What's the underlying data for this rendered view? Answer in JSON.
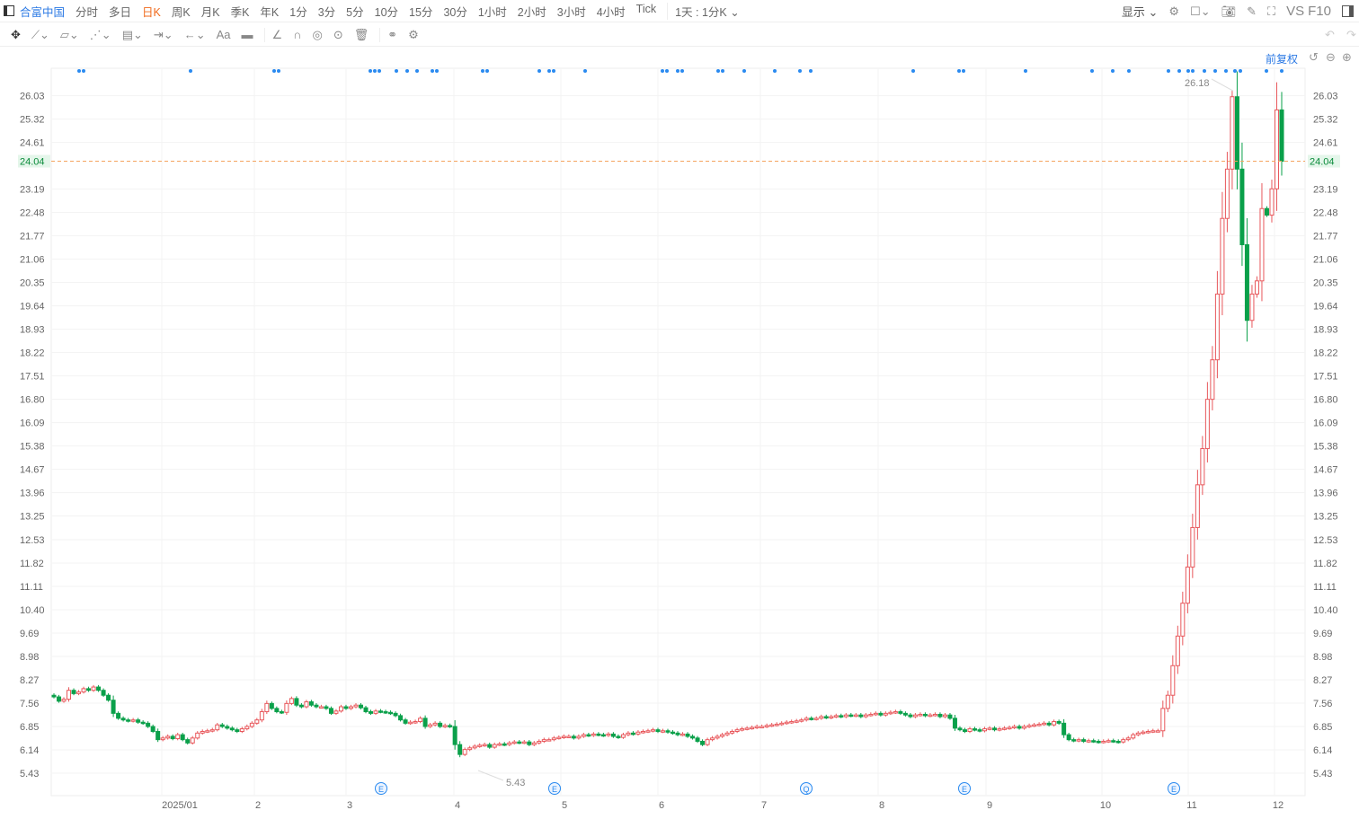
{
  "header": {
    "brand": "合富中国",
    "periods": [
      "分时",
      "多日",
      "日K",
      "周K",
      "月K",
      "季K",
      "年K",
      "1分",
      "3分",
      "5分",
      "10分",
      "15分",
      "30分",
      "1小时",
      "2小时",
      "3小时",
      "4小时",
      "Tick"
    ],
    "selected_period": "日K",
    "interval_select": "1天 : 1分K ⌄",
    "display_label": "显示 ⌄",
    "vs_label": "VS",
    "f10_label": "F10"
  },
  "drawing_tools": [
    "move-icon",
    "line-icon",
    "channel-icon",
    "wave-icon",
    "fib-icon",
    "measure-icon",
    "arrow-icon",
    "text-icon",
    "comment-icon",
    "angle-icon",
    "magnet-icon",
    "eye-icon",
    "target-icon",
    "trash-icon",
    "compare-icon",
    "settings-icon"
  ],
  "text_tool_label": "Aa",
  "adjust_label": "前复权",
  "colors": {
    "up": "#e8575b",
    "down": "#0aa04a",
    "accent": "#2a78e4",
    "price_line": "#f4a460",
    "marker": "#2a8af0"
  },
  "chart_data": {
    "type": "candlestick",
    "y_ticks": [
      "26.03",
      "25.32",
      "24.61",
      "24.04",
      "23.19",
      "22.48",
      "21.77",
      "21.06",
      "20.35",
      "19.64",
      "18.93",
      "18.22",
      "17.51",
      "16.80",
      "16.09",
      "15.38",
      "14.67",
      "13.96",
      "13.25",
      "12.53",
      "11.82",
      "11.11",
      "10.40",
      "9.69",
      "8.98",
      "8.27",
      "7.56",
      "6.85",
      "6.14",
      "5.43"
    ],
    "ylim": [
      5.43,
      26.03
    ],
    "x_ticks": [
      "2025/01",
      "2",
      "3",
      "4",
      "5",
      "6",
      "7",
      "8",
      "9",
      "10",
      "11",
      "12"
    ],
    "current_price": "24.04",
    "max_label": "26.18",
    "min_label": "5.43",
    "event_markers": [
      "E",
      "E",
      "Q",
      "E",
      "E"
    ],
    "close": [
      7.75,
      7.62,
      7.68,
      7.95,
      7.85,
      7.9,
      8.0,
      7.95,
      8.05,
      7.95,
      7.8,
      7.65,
      7.25,
      7.1,
      7.05,
      7.02,
      7.05,
      6.98,
      6.95,
      6.85,
      6.7,
      6.45,
      6.5,
      6.55,
      6.48,
      6.6,
      6.45,
      6.35,
      6.5,
      6.65,
      6.7,
      6.72,
      6.75,
      6.9,
      6.85,
      6.8,
      6.75,
      6.7,
      6.78,
      6.85,
      6.95,
      7.05,
      7.3,
      7.55,
      7.4,
      7.3,
      7.28,
      7.55,
      7.7,
      7.5,
      7.45,
      7.6,
      7.5,
      7.45,
      7.45,
      7.4,
      7.25,
      7.32,
      7.45,
      7.4,
      7.45,
      7.5,
      7.42,
      7.3,
      7.25,
      7.32,
      7.3,
      7.28,
      7.25,
      7.18,
      7.05,
      6.95,
      6.98,
      7.0,
      7.1,
      6.85,
      6.9,
      6.95,
      6.85,
      6.88,
      6.85,
      6.3,
      6.0,
      6.15,
      6.2,
      6.25,
      6.28,
      6.3,
      6.22,
      6.3,
      6.32,
      6.3,
      6.35,
      6.38,
      6.36,
      6.38,
      6.3,
      6.35,
      6.4,
      6.45,
      6.45,
      6.5,
      6.52,
      6.55,
      6.55,
      6.5,
      6.55,
      6.6,
      6.58,
      6.62,
      6.6,
      6.58,
      6.62,
      6.55,
      6.52,
      6.6,
      6.65,
      6.62,
      6.68,
      6.7,
      6.72,
      6.75,
      6.7,
      6.72,
      6.68,
      6.65,
      6.6,
      6.62,
      6.55,
      6.5,
      6.4,
      6.3,
      6.45,
      6.5,
      6.55,
      6.6,
      6.65,
      6.7,
      6.75,
      6.78,
      6.8,
      6.82,
      6.85,
      6.85,
      6.88,
      6.9,
      6.92,
      6.95,
      6.98,
      7.0,
      7.02,
      7.05,
      7.1,
      7.08,
      7.1,
      7.15,
      7.12,
      7.15,
      7.18,
      7.15,
      7.2,
      7.18,
      7.2,
      7.15,
      7.2,
      7.22,
      7.25,
      7.2,
      7.25,
      7.28,
      7.3,
      7.25,
      7.2,
      7.15,
      7.2,
      7.22,
      7.18,
      7.2,
      7.22,
      7.15,
      7.2,
      7.1,
      6.8,
      6.75,
      6.7,
      6.78,
      6.75,
      6.72,
      6.78,
      6.8,
      6.75,
      6.78,
      6.8,
      6.82,
      6.85,
      6.8,
      6.85,
      6.88,
      6.9,
      6.92,
      6.95,
      6.9,
      7.0,
      6.95,
      6.6,
      6.45,
      6.42,
      6.45,
      6.4,
      6.42,
      6.4,
      6.38,
      6.4,
      6.42,
      6.4,
      6.38,
      6.45,
      6.5,
      6.6,
      6.65,
      6.68,
      6.7,
      6.72,
      6.72,
      7.4,
      7.8,
      8.7,
      9.6,
      10.6,
      11.7,
      12.9,
      14.2,
      15.3,
      16.8,
      18.0,
      20.0,
      22.3,
      23.8,
      26.0,
      23.8,
      21.5,
      19.2,
      20.0,
      20.4,
      22.6,
      22.4,
      23.2,
      25.6,
      24.04
    ]
  }
}
